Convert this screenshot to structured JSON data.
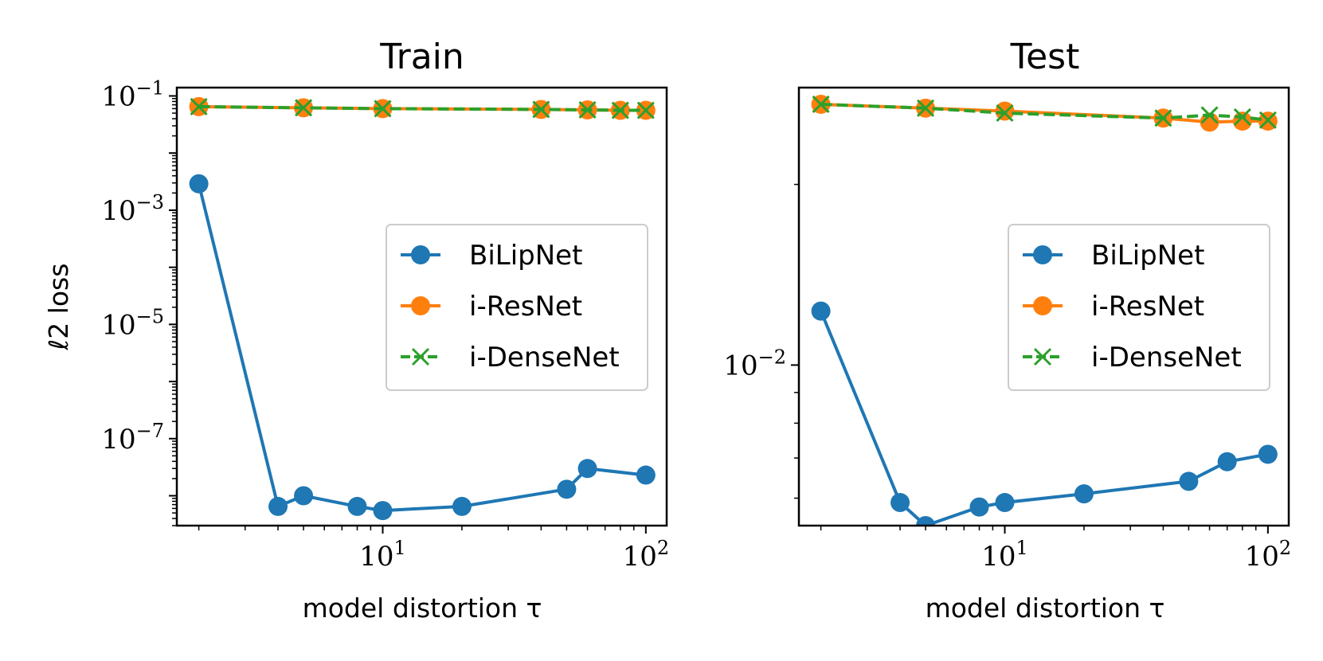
{
  "chart_data": [
    {
      "type": "line",
      "title": "Train",
      "xlabel": "model distortion τ",
      "ylabel": "ℓ2 loss",
      "xscale": "log",
      "yscale": "log",
      "xlim": [
        1.65,
        120
      ],
      "ylim": [
        3e-09,
        0.14
      ],
      "xticks": [
        {
          "label": "10",
          "exp": "1"
        },
        {
          "label": "10",
          "exp": "2"
        }
      ],
      "yticks": [
        {
          "label": "10",
          "exp": "−1"
        },
        {
          "label": "10",
          "exp": "−3"
        },
        {
          "label": "10",
          "exp": "−5"
        },
        {
          "label": "10",
          "exp": "−7"
        }
      ],
      "legend": "right",
      "series": [
        {
          "name": "BiLipNet",
          "color": "#1f77b4",
          "marker": "o",
          "dash": false,
          "x": [
            2,
            4,
            5,
            8,
            10,
            20,
            50,
            60,
            100
          ],
          "y": [
            0.0029,
            6.5e-09,
            1e-08,
            6.5e-09,
            5.5e-09,
            6.5e-09,
            1.3e-08,
            3e-08,
            2.3e-08
          ]
        },
        {
          "name": "i-ResNet",
          "color": "#ff7f0e",
          "marker": "o",
          "dash": false,
          "x": [
            2,
            5,
            10,
            40,
            60,
            80,
            100
          ],
          "y": [
            0.065,
            0.062,
            0.06,
            0.058,
            0.057,
            0.056,
            0.056
          ]
        },
        {
          "name": "i-DenseNet",
          "color": "#2ca02c",
          "marker": "x",
          "dash": true,
          "x": [
            2,
            5,
            10,
            40,
            60,
            80,
            100
          ],
          "y": [
            0.065,
            0.062,
            0.06,
            0.058,
            0.057,
            0.056,
            0.056
          ]
        }
      ]
    },
    {
      "type": "line",
      "title": "Test",
      "xlabel": "model distortion τ",
      "ylabel": "",
      "xscale": "log",
      "yscale": "log",
      "xlim": [
        1.65,
        120
      ],
      "ylim": [
        0.0054,
        0.029
      ],
      "xticks": [
        {
          "label": "10",
          "exp": "1"
        },
        {
          "label": "10",
          "exp": "2"
        }
      ],
      "yticks": [
        {
          "label": "10",
          "exp": "−2"
        }
      ],
      "legend": "right",
      "series": [
        {
          "name": "BiLipNet",
          "color": "#1f77b4",
          "marker": "o",
          "dash": false,
          "x": [
            2,
            4,
            5,
            8,
            10,
            20,
            50,
            70,
            100
          ],
          "y": [
            0.0123,
            0.0059,
            0.0054,
            0.0058,
            0.0059,
            0.0061,
            0.0064,
            0.0069,
            0.0071
          ]
        },
        {
          "name": "i-ResNet",
          "color": "#ff7f0e",
          "marker": "o",
          "dash": false,
          "x": [
            2,
            5,
            10,
            40,
            60,
            80,
            100
          ],
          "y": [
            0.0272,
            0.0268,
            0.0265,
            0.0258,
            0.0254,
            0.0255,
            0.0255
          ]
        },
        {
          "name": "i-DenseNet",
          "color": "#2ca02c",
          "marker": "x",
          "dash": true,
          "x": [
            2,
            5,
            10,
            40,
            60,
            80,
            100
          ],
          "y": [
            0.0272,
            0.0268,
            0.0263,
            0.0258,
            0.0261,
            0.0259,
            0.0256
          ]
        }
      ]
    }
  ]
}
